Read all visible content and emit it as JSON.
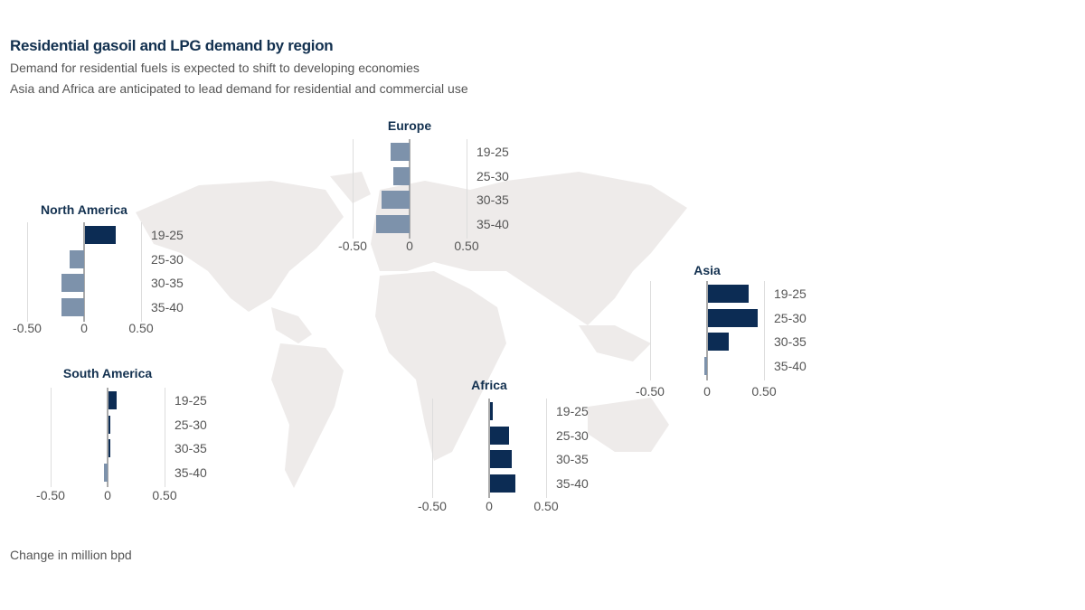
{
  "header": {
    "title": "Residential gasoil and LPG demand by region",
    "subtitle1": "Demand for residential fuels is expected to shift to developing economies",
    "subtitle2": "Asia and Africa are anticipated to lead demand for residential and commercial use"
  },
  "footer": {
    "unit_note": "Change in million bpd"
  },
  "chart_data": [
    {
      "type": "bar",
      "orientation": "horizontal",
      "title": "North America",
      "categories": [
        "19-25",
        "25-30",
        "30-35",
        "35-40"
      ],
      "values": [
        0.27,
        -0.13,
        -0.2,
        -0.2
      ],
      "xlim": [
        -0.5,
        0.5
      ],
      "tick_labels": [
        "-0.50",
        "0",
        "0.50"
      ]
    },
    {
      "type": "bar",
      "orientation": "horizontal",
      "title": "Europe",
      "categories": [
        "19-25",
        "25-30",
        "30-35",
        "35-40"
      ],
      "values": [
        -0.17,
        -0.14,
        -0.25,
        -0.29
      ],
      "xlim": [
        -0.5,
        0.5
      ],
      "tick_labels": [
        "-0.50",
        "0",
        "0.50"
      ]
    },
    {
      "type": "bar",
      "orientation": "horizontal",
      "title": "Asia",
      "categories": [
        "19-25",
        "25-30",
        "30-35",
        "35-40"
      ],
      "values": [
        0.36,
        0.44,
        0.18,
        -0.02
      ],
      "xlim": [
        -0.5,
        0.5
      ],
      "tick_labels": [
        "-0.50",
        "0",
        "0.50"
      ]
    },
    {
      "type": "bar",
      "orientation": "horizontal",
      "title": "South America",
      "categories": [
        "19-25",
        "25-30",
        "30-35",
        "35-40"
      ],
      "values": [
        0.07,
        0.01,
        0.0,
        -0.03
      ],
      "xlim": [
        -0.5,
        0.5
      ],
      "tick_labels": [
        "-0.50",
        "0",
        "0.50"
      ]
    },
    {
      "type": "bar",
      "orientation": "horizontal",
      "title": "Africa",
      "categories": [
        "19-25",
        "25-30",
        "30-35",
        "35-40"
      ],
      "values": [
        0.02,
        0.17,
        0.19,
        0.22
      ],
      "xlim": [
        -0.5,
        0.5
      ],
      "tick_labels": [
        "-0.50",
        "0",
        "0.50"
      ]
    }
  ],
  "colors": {
    "positive": "#0c2c54",
    "negative": "#7d92ab",
    "map": "#eeebea"
  }
}
